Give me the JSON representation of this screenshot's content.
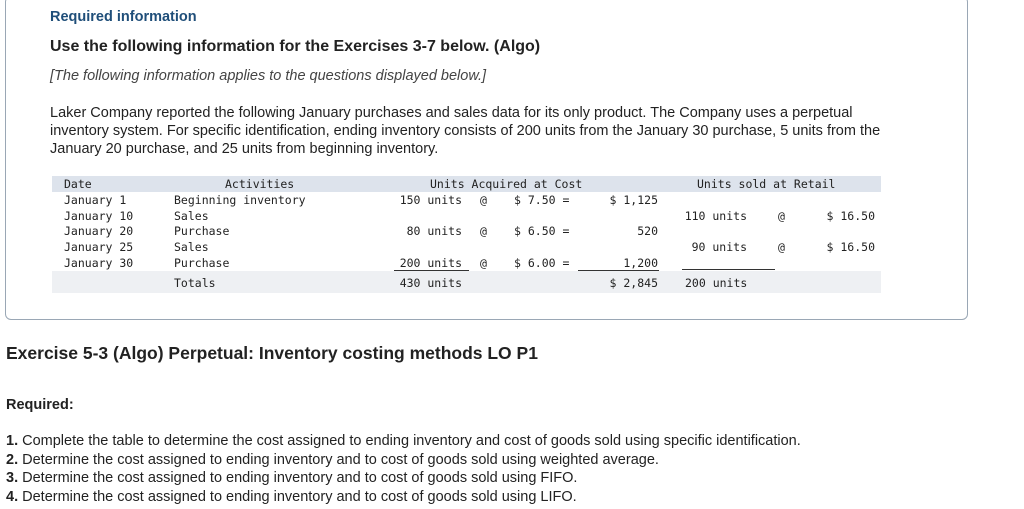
{
  "info": {
    "label": "Required information",
    "heading": "Use the following information for the Exercises 3-7 below. (Algo)",
    "subnote": "[The following information applies to the questions displayed below.]",
    "paragraph": "Laker Company reported the following January purchases and sales data for its only product. The Company uses a perpetual inventory system. For specific identification, ending inventory consists of 200 units from the January 30 purchase, 5 units from the January 20 purchase, and 25 units from beginning inventory."
  },
  "table": {
    "headers": {
      "date": "Date",
      "activities": "Activities",
      "acquired": "Units Acquired at Cost",
      "sold": "Units sold at Retail"
    },
    "rows": [
      {
        "date": "January 1",
        "activity": "Beginning inventory",
        "acq_units": "150 units",
        "acq_at": "@",
        "acq_cost": "$ 7.50 =",
        "acq_total": "$ 1,125",
        "sold_units": "",
        "sold_at": "",
        "sold_price": ""
      },
      {
        "date": "January 10",
        "activity": "Sales",
        "acq_units": "",
        "acq_at": "",
        "acq_cost": "",
        "acq_total": "",
        "sold_units": "110 units",
        "sold_at": "@",
        "sold_price": "$ 16.50"
      },
      {
        "date": "January 20",
        "activity": "Purchase",
        "acq_units": "80 units",
        "acq_at": "@",
        "acq_cost": "$ 6.50 =",
        "acq_total": "520",
        "sold_units": "",
        "sold_at": "",
        "sold_price": ""
      },
      {
        "date": "January 25",
        "activity": "Sales",
        "acq_units": "",
        "acq_at": "",
        "acq_cost": "",
        "acq_total": "",
        "sold_units": "90 units",
        "sold_at": "@",
        "sold_price": "$ 16.50"
      },
      {
        "date": "January 30",
        "activity": "Purchase",
        "acq_units": "200 units",
        "acq_at": "@",
        "acq_cost": "$ 6.00 =",
        "acq_total": "1,200",
        "sold_units": "",
        "sold_at": "",
        "sold_price": ""
      }
    ],
    "totals": {
      "label": "Totals",
      "acq_units": "430 units",
      "acq_total": "$ 2,845",
      "sold_units": "200 units"
    }
  },
  "exercise": {
    "title": "Exercise 5-3 (Algo) Perpetual: Inventory costing methods LO P1",
    "required_label": "Required:",
    "items": [
      {
        "num": "1.",
        "text": "Complete the table to determine the cost assigned to ending inventory and cost of goods sold using specific identification."
      },
      {
        "num": "2.",
        "text": "Determine the cost assigned to ending inventory and to cost of goods sold using weighted average."
      },
      {
        "num": "3.",
        "text": "Determine the cost assigned to ending inventory and to cost of goods sold using FIFO."
      },
      {
        "num": "4.",
        "text": "Determine the cost assigned to ending inventory and to cost of goods sold using LIFO."
      }
    ]
  }
}
